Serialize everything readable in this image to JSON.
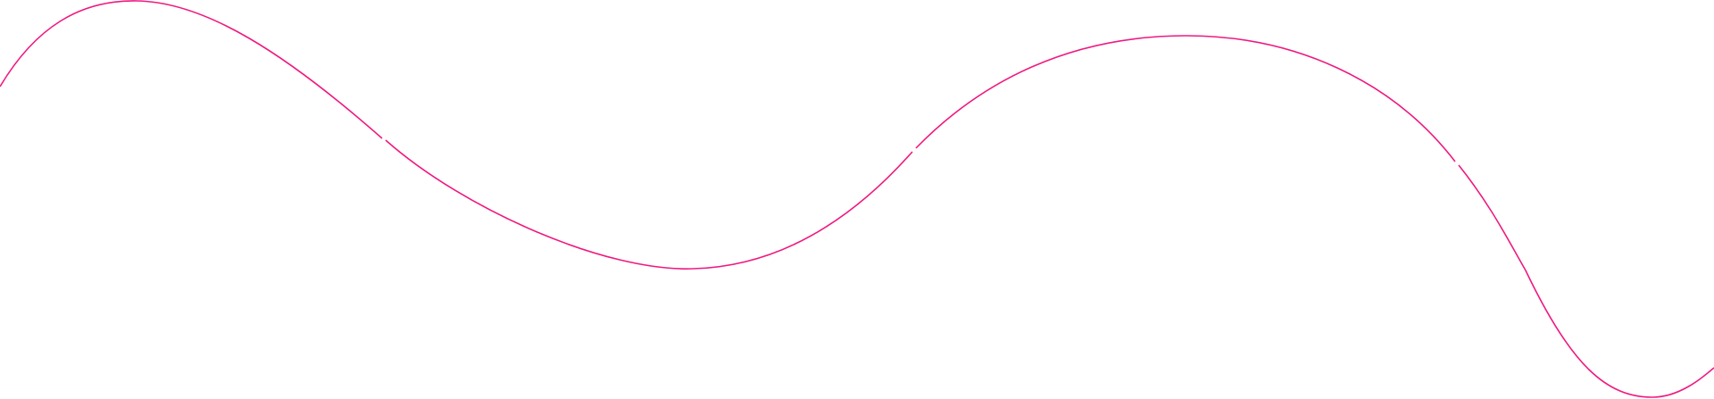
{
  "decoration": {
    "type": "wave-line",
    "background_color": "#ffffff",
    "stroke_color": "#ee1a80"
  }
}
